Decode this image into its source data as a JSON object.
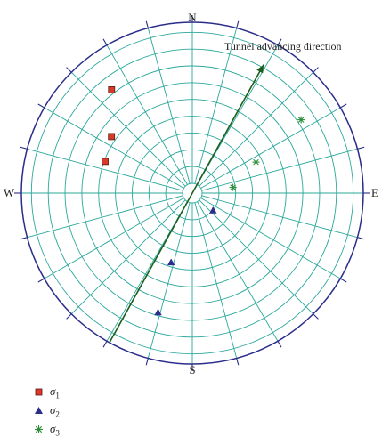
{
  "labels": {
    "north": "N",
    "south": "S",
    "east": "E",
    "west": "W",
    "tunnel_direction": "Tunnel advancing direction"
  },
  "colors": {
    "grid": "#2aa89b",
    "outer_circle": "#2b2d8a",
    "tunnel_arrow": "#1d5e1d",
    "sigma1": "#d83a2a",
    "sigma2": "#2b2d8a",
    "sigma3": "#2e8b3a"
  },
  "legend": [
    {
      "symbol": "square",
      "base": "σ",
      "sub": "1"
    },
    {
      "symbol": "triangle",
      "base": "σ",
      "sub": "2"
    },
    {
      "symbol": "asterisk",
      "base": "σ",
      "sub": "3"
    }
  ],
  "tunnel_direction_azimuth_deg": 29,
  "principal_stresses": [
    {
      "name": "σ1",
      "symbol": "square",
      "points": [
        {
          "trend_deg": 322,
          "plunge_deg": 15
        },
        {
          "trend_deg": 305,
          "plunge_deg": 30
        },
        {
          "trend_deg": 290,
          "plunge_deg": 33
        }
      ]
    },
    {
      "name": "σ2",
      "symbol": "triangle",
      "points": [
        {
          "trend_deg": 130,
          "plunge_deg": 72
        },
        {
          "trend_deg": 197,
          "plunge_deg": 44
        },
        {
          "trend_deg": 196,
          "plunge_deg": 18
        }
      ]
    },
    {
      "name": "σ3",
      "symbol": "asterisk",
      "points": [
        {
          "trend_deg": 56,
          "plunge_deg": 15
        },
        {
          "trend_deg": 64,
          "plunge_deg": 45
        },
        {
          "trend_deg": 82,
          "plunge_deg": 63
        }
      ]
    }
  ]
}
